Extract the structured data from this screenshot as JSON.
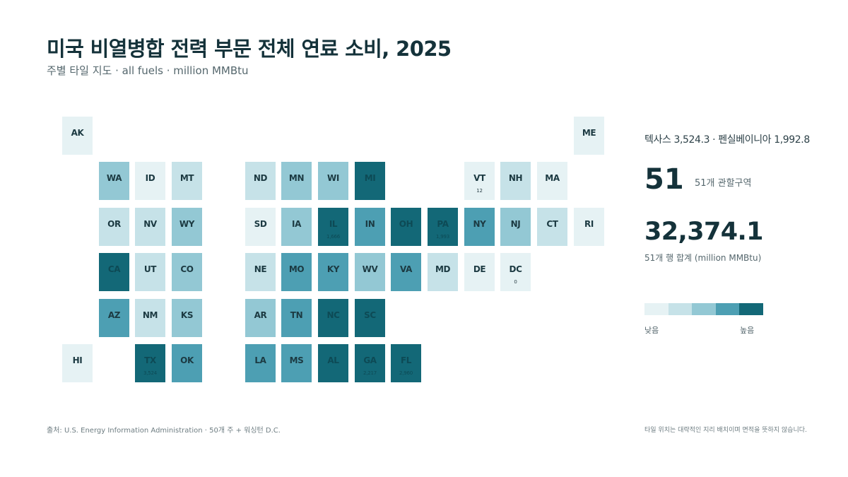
{
  "title": "미국 비열병합 전력 부문 전체 연료 소비, 2025",
  "subtitle": "주별 타일 지도 · all fuels · million MMBtu",
  "highlights": "텍사스 3,524.3 · 펜실베이니아 1,992.8",
  "count": {
    "value": "51",
    "label": "51개 관할구역"
  },
  "total": {
    "value": "32,374.1",
    "label": "51개 행 합계 (million MMBtu)"
  },
  "legend": {
    "low_label": "낮음",
    "high_label": "높음",
    "colors": [
      "#e6f2f4",
      "#c6e2e8",
      "#93c8d4",
      "#4d9fb3",
      "#136877"
    ]
  },
  "source": "출처: U.S. Energy Information Administration · 50개 주 + 워싱턴 D.C.",
  "note": "타일 위치는 대략적인 지리 배치이며 면적을 뜻하지 않습니다.",
  "chart_data": {
    "type": "heatmap",
    "title": "미국 비열병합 전력 부문 전체 연료 소비, 2025",
    "unit": "million MMBtu",
    "scale_levels": 5,
    "tiles": [
      {
        "state": "AK",
        "row": 0,
        "col": 0,
        "level": 1
      },
      {
        "state": "ME",
        "row": 0,
        "col": 14,
        "level": 1
      },
      {
        "state": "WA",
        "row": 1,
        "col": 1,
        "level": 3
      },
      {
        "state": "ID",
        "row": 1,
        "col": 2,
        "level": 1
      },
      {
        "state": "MT",
        "row": 1,
        "col": 3,
        "level": 2
      },
      {
        "state": "ND",
        "row": 1,
        "col": 5,
        "level": 2
      },
      {
        "state": "MN",
        "row": 1,
        "col": 6,
        "level": 3
      },
      {
        "state": "WI",
        "row": 1,
        "col": 7,
        "level": 3
      },
      {
        "state": "MI",
        "row": 1,
        "col": 8,
        "level": 5
      },
      {
        "state": "VT",
        "row": 1,
        "col": 11,
        "level": 1,
        "label": "12"
      },
      {
        "state": "NH",
        "row": 1,
        "col": 12,
        "level": 2
      },
      {
        "state": "MA",
        "row": 1,
        "col": 13,
        "level": 1
      },
      {
        "state": "OR",
        "row": 2,
        "col": 1,
        "level": 2
      },
      {
        "state": "NV",
        "row": 2,
        "col": 2,
        "level": 2
      },
      {
        "state": "WY",
        "row": 2,
        "col": 3,
        "level": 3
      },
      {
        "state": "SD",
        "row": 2,
        "col": 5,
        "level": 1
      },
      {
        "state": "IA",
        "row": 2,
        "col": 6,
        "level": 3
      },
      {
        "state": "IL",
        "row": 2,
        "col": 7,
        "level": 5,
        "label": "1,666"
      },
      {
        "state": "IN",
        "row": 2,
        "col": 8,
        "level": 4
      },
      {
        "state": "OH",
        "row": 2,
        "col": 9,
        "level": 5
      },
      {
        "state": "PA",
        "row": 2,
        "col": 10,
        "level": 5,
        "label": "1,993"
      },
      {
        "state": "NY",
        "row": 2,
        "col": 11,
        "level": 4
      },
      {
        "state": "NJ",
        "row": 2,
        "col": 12,
        "level": 3
      },
      {
        "state": "CT",
        "row": 2,
        "col": 13,
        "level": 2
      },
      {
        "state": "RI",
        "row": 2,
        "col": 14,
        "level": 1
      },
      {
        "state": "CA",
        "row": 3,
        "col": 1,
        "level": 5
      },
      {
        "state": "UT",
        "row": 3,
        "col": 2,
        "level": 2
      },
      {
        "state": "CO",
        "row": 3,
        "col": 3,
        "level": 3
      },
      {
        "state": "NE",
        "row": 3,
        "col": 5,
        "level": 2
      },
      {
        "state": "MO",
        "row": 3,
        "col": 6,
        "level": 4
      },
      {
        "state": "KY",
        "row": 3,
        "col": 7,
        "level": 4
      },
      {
        "state": "WV",
        "row": 3,
        "col": 8,
        "level": 3
      },
      {
        "state": "VA",
        "row": 3,
        "col": 9,
        "level": 4
      },
      {
        "state": "MD",
        "row": 3,
        "col": 10,
        "level": 2
      },
      {
        "state": "DE",
        "row": 3,
        "col": 11,
        "level": 1
      },
      {
        "state": "DC",
        "row": 3,
        "col": 12,
        "level": 0,
        "label": "0"
      },
      {
        "state": "AZ",
        "row": 4,
        "col": 1,
        "level": 4
      },
      {
        "state": "NM",
        "row": 4,
        "col": 2,
        "level": 2
      },
      {
        "state": "KS",
        "row": 4,
        "col": 3,
        "level": 3
      },
      {
        "state": "AR",
        "row": 4,
        "col": 5,
        "level": 3
      },
      {
        "state": "TN",
        "row": 4,
        "col": 6,
        "level": 4
      },
      {
        "state": "NC",
        "row": 4,
        "col": 7,
        "level": 5
      },
      {
        "state": "SC",
        "row": 4,
        "col": 8,
        "level": 5
      },
      {
        "state": "HI",
        "row": 5,
        "col": 0,
        "level": 1
      },
      {
        "state": "TX",
        "row": 5,
        "col": 2,
        "level": 5,
        "label": "3,524"
      },
      {
        "state": "OK",
        "row": 5,
        "col": 3,
        "level": 4
      },
      {
        "state": "LA",
        "row": 5,
        "col": 5,
        "level": 4
      },
      {
        "state": "MS",
        "row": 5,
        "col": 6,
        "level": 4
      },
      {
        "state": "AL",
        "row": 5,
        "col": 7,
        "level": 5
      },
      {
        "state": "GA",
        "row": 5,
        "col": 8,
        "level": 5,
        "label": "2,217"
      },
      {
        "state": "FL",
        "row": 5,
        "col": 9,
        "level": 5,
        "label": "2,960"
      }
    ]
  }
}
